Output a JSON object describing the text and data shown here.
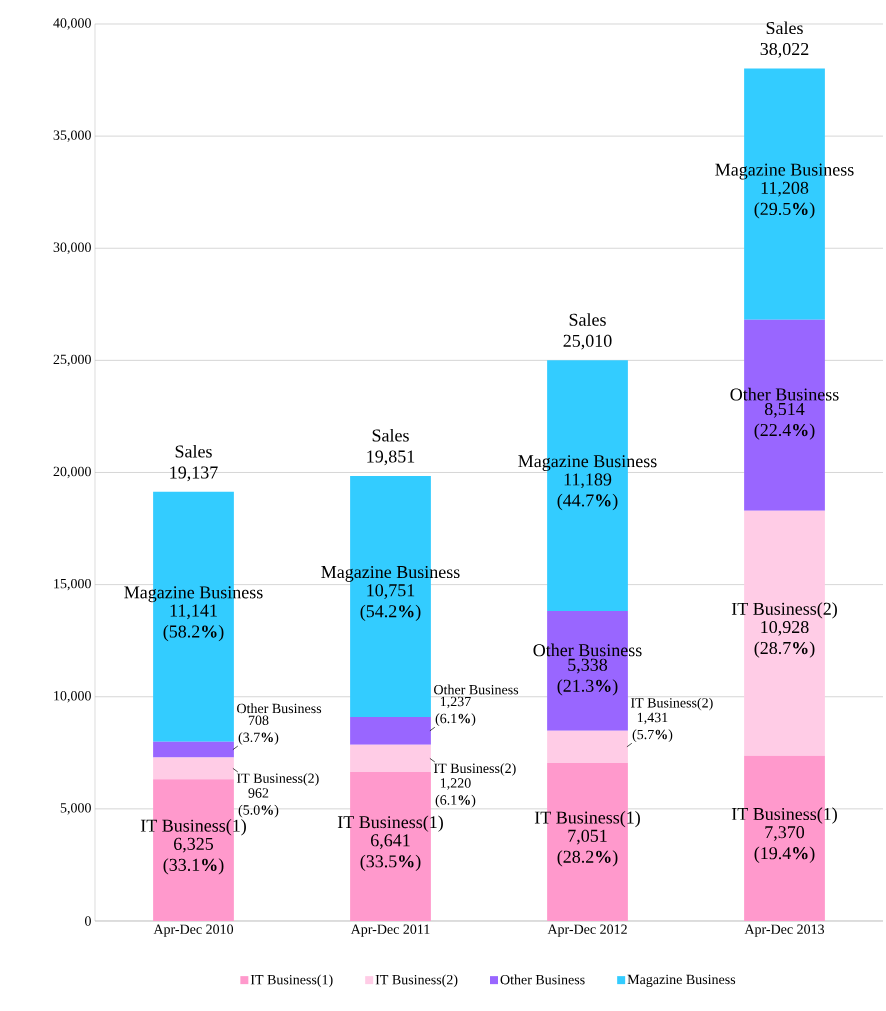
{
  "chart_data": {
    "type": "bar",
    "stacked": true,
    "categories": [
      "Apr-Dec 2010",
      "Apr-Dec 2011",
      "Apr-Dec 2012",
      "Apr-Dec 2013"
    ],
    "series": [
      {
        "name": "IT Business(1)",
        "color": "#ff99cc",
        "values": [
          6325,
          6641,
          7051,
          7370
        ],
        "value_labels": [
          "6,325 (33.1**%**)",
          "6,641 (33.5**%**)",
          "7,051 (28.2**%**)",
          "7,370 (19.4**%**)"
        ]
      },
      {
        "name": "IT Business(2)",
        "color": "#ffcce6",
        "values": [
          962,
          1220,
          1431,
          10928
        ],
        "value_labels": [
          "962 (5.0**%**)",
          "1,220 (6.1**%**)",
          "1,431 (5.7**%**)",
          "10,928 (28.7**%**)"
        ]
      },
      {
        "name": "Other Business",
        "color": "#9966ff",
        "values": [
          708,
          1237,
          5338,
          8514
        ],
        "value_labels": [
          "708 (3.7**%**)",
          "1,237 (6.1**%**)",
          "5,338 (21.3**%**)",
          "8,514 (22.4**%**)"
        ]
      },
      {
        "name": "Magazine Business",
        "color": "#33ccff",
        "values": [
          11141,
          10751,
          11189,
          11208
        ],
        "value_labels": [
          "11,141 (58.2**%**)",
          "10,751 (54.2**%**)",
          "11,189 (44.7**%**)",
          "11,208 (29.5**%**)"
        ]
      }
    ],
    "totals": [
      "Sales 19,137",
      "Sales 19,851",
      "Sales 25,010",
      "Sales 38,022"
    ],
    "ylim": [
      0,
      40000
    ],
    "yticks": [
      0,
      {
        "value": 5000,
        "label": "5,000"
      },
      {
        "value": 10000,
        "label": "10,000"
      },
      {
        "value": 15000,
        "label": "15,000"
      },
      {
        "value": 20000,
        "label": "20,000"
      },
      {
        "value": 25000,
        "label": "25,000"
      },
      {
        "value": 30000,
        "label": "30,000"
      },
      {
        "value": 35000,
        "label": "35,000"
      },
      {
        "value": 40000,
        "label": "40,000"
      }
    ],
    "grid": "y",
    "legend": "bottom"
  }
}
